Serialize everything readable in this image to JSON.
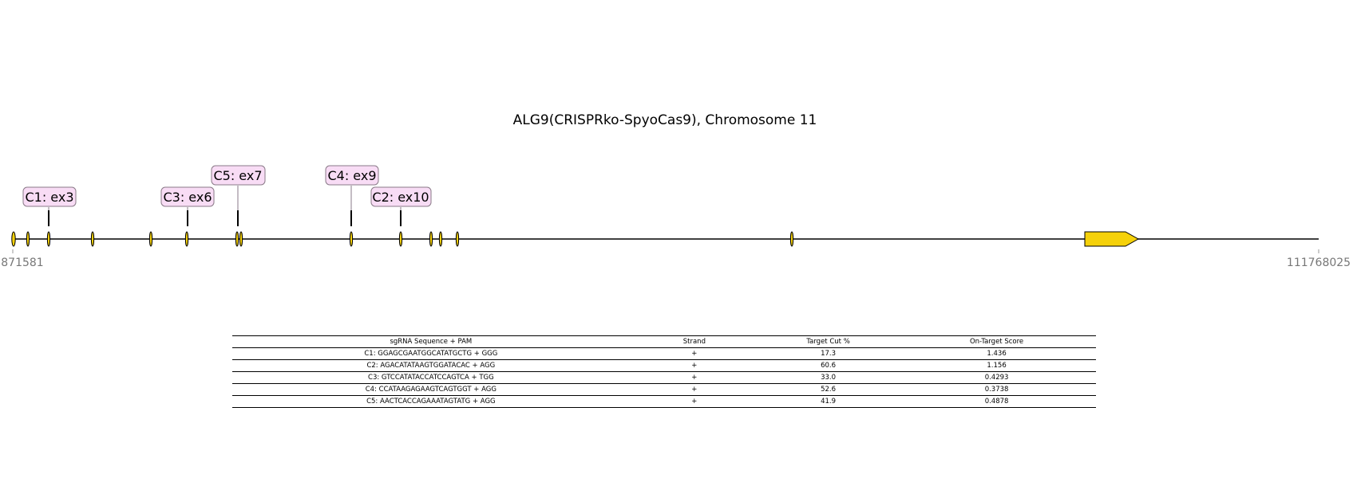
{
  "figure": {
    "title": "ALG9(CRISPRko-SpyoCas9), Chromosome 11",
    "axis_start_label": "871581",
    "axis_end_label": "111768025"
  },
  "colors": {
    "gene_fill": "#f5d10a",
    "label_box_fill": "#f8dcf5",
    "label_box_stroke": "#8a7a88"
  },
  "guides": [
    {
      "label": "C1: ex3"
    },
    {
      "label": "C3: ex6"
    },
    {
      "label": "C5: ex7"
    },
    {
      "label": "C4: ex9"
    },
    {
      "label": "C2: ex10"
    }
  ],
  "table": {
    "headers": [
      "sgRNA Sequence + PAM",
      "Strand",
      "Target Cut %",
      "On-Target Score"
    ],
    "rows": [
      [
        "C1: GGAGCGAATGGCATATGCTG + GGG",
        "+",
        "17.3",
        "1.436"
      ],
      [
        "C2: AGACATATAAGTGGATACAC + AGG",
        "+",
        "60.6",
        "1.156"
      ],
      [
        "C3: GTCCATATACCATCCAGTCA + TGG",
        "+",
        "33.0",
        "0.4293"
      ],
      [
        "C4: CCATAAGAGAAGTCAGTGGT + AGG",
        "+",
        "52.6",
        "0.3738"
      ],
      [
        "C5: AACTCACCAGAAATAGTATG + AGG",
        "+",
        "41.9",
        "0.4878"
      ]
    ]
  }
}
